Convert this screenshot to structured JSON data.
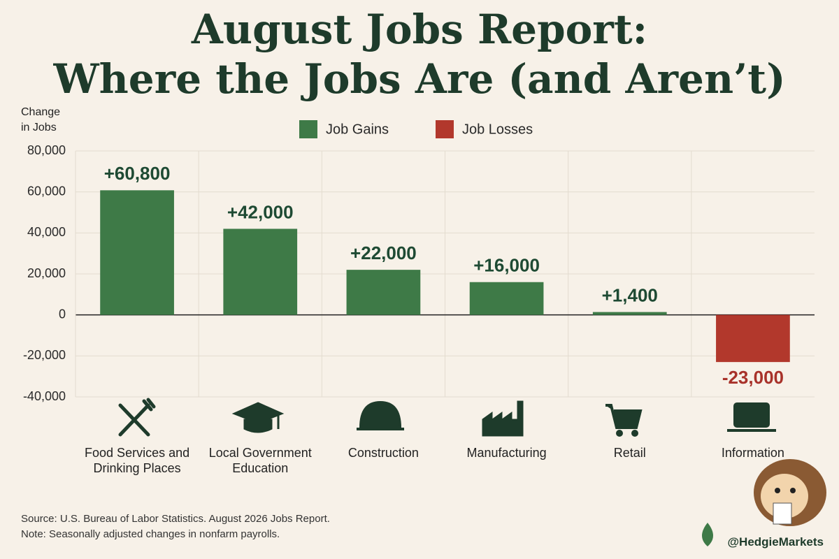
{
  "chart_data": {
    "type": "bar",
    "title": [
      "August Jobs Report:",
      "Where the Jobs Are (and Aren’t)"
    ],
    "y_label": "Change in Jobs",
    "legend": [
      {
        "name": "Job Gains",
        "color": "#3e7a47"
      },
      {
        "name": "Job Losses",
        "color": "#b2382c"
      }
    ],
    "categories": [
      "Food Services and Drinking Places",
      "Local Government Education",
      "Construction",
      "Manufacturing",
      "Retail",
      "Information"
    ],
    "values": [
      60800,
      42000,
      22000,
      16000,
      1400,
      -23000
    ],
    "value_labels": [
      "+60,800",
      "+42,000",
      "+22,000",
      "+16,000",
      "+1,400",
      "-23,000"
    ],
    "ylim": [
      -40000,
      80000
    ],
    "yticks": [
      {
        "value": -40000,
        "label": "-40,000"
      },
      {
        "value": -20000,
        "label": "-20,000"
      },
      0,
      {
        "value": 20000,
        "label": "20,000"
      },
      {
        "value": 40000,
        "label": "40,000"
      },
      {
        "value": 60000,
        "label": "60,000"
      },
      {
        "value": 80000,
        "label": "80,000"
      }
    ],
    "grid": true,
    "notes": [
      "Source: U.S. Bureau of Labor Statistics. August 2026 Jobs Report.",
      "Note: Seasonally adjusted changes in nonfarm payrolls."
    ],
    "handle": "@HedgieMarkets"
  }
}
